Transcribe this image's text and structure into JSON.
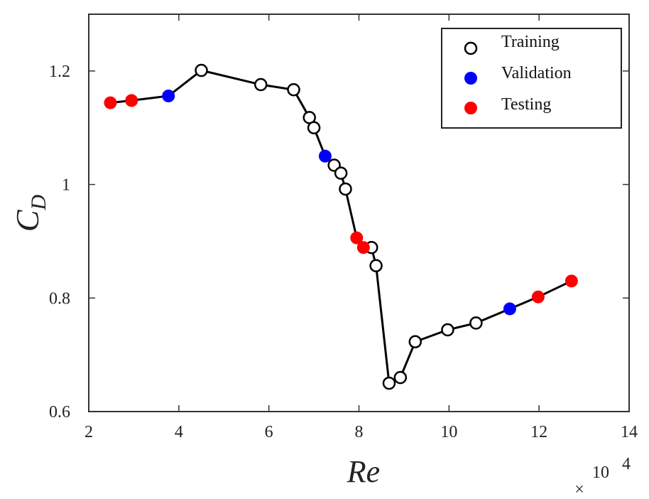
{
  "chart_data": {
    "type": "scatter",
    "xlabel": "Re",
    "ylabel_main": "C",
    "ylabel_sub": "D",
    "x_multiplier": {
      "times": "×",
      "base": "10",
      "exponent": "4"
    },
    "xlim": [
      2,
      14
    ],
    "ylim": [
      0.6,
      1.3
    ],
    "xticks": [
      2,
      4,
      6,
      8,
      10,
      12,
      14
    ],
    "xtick_labels": [
      "2",
      "4",
      "6",
      "8",
      "10",
      "12",
      "14"
    ],
    "yticks": [
      0.6,
      0.8,
      1.0,
      1.2
    ],
    "ytick_labels": [
      "0.6",
      "0.8",
      "1",
      "1.2"
    ],
    "grid": false,
    "legend_position": "top-right",
    "line": {
      "color": "#000000",
      "connects": "all points in x order"
    },
    "series": [
      {
        "name": "Training",
        "marker": "open-circle",
        "color": "#000000",
        "points": [
          {
            "x": 4.5,
            "y": 1.201
          },
          {
            "x": 5.82,
            "y": 1.176
          },
          {
            "x": 6.55,
            "y": 1.167
          },
          {
            "x": 6.9,
            "y": 1.118
          },
          {
            "x": 7.0,
            "y": 1.1
          },
          {
            "x": 7.45,
            "y": 1.034
          },
          {
            "x": 7.6,
            "y": 1.02
          },
          {
            "x": 7.7,
            "y": 0.992
          },
          {
            "x": 8.28,
            "y": 0.889
          },
          {
            "x": 8.38,
            "y": 0.857
          },
          {
            "x": 8.67,
            "y": 0.65
          },
          {
            "x": 8.92,
            "y": 0.66
          },
          {
            "x": 9.25,
            "y": 0.723
          },
          {
            "x": 9.97,
            "y": 0.744
          },
          {
            "x": 10.6,
            "y": 0.756
          }
        ]
      },
      {
        "name": "Validation",
        "marker": "filled-circle",
        "color": "#0000ff",
        "points": [
          {
            "x": 3.77,
            "y": 1.156
          },
          {
            "x": 7.25,
            "y": 1.05
          },
          {
            "x": 11.35,
            "y": 0.781
          }
        ]
      },
      {
        "name": "Testing",
        "marker": "filled-circle",
        "color": "#ff0000",
        "points": [
          {
            "x": 2.48,
            "y": 1.144
          },
          {
            "x": 2.95,
            "y": 1.148
          },
          {
            "x": 7.95,
            "y": 0.906
          },
          {
            "x": 8.1,
            "y": 0.889
          },
          {
            "x": 11.98,
            "y": 0.802
          },
          {
            "x": 12.72,
            "y": 0.83
          }
        ]
      }
    ]
  }
}
